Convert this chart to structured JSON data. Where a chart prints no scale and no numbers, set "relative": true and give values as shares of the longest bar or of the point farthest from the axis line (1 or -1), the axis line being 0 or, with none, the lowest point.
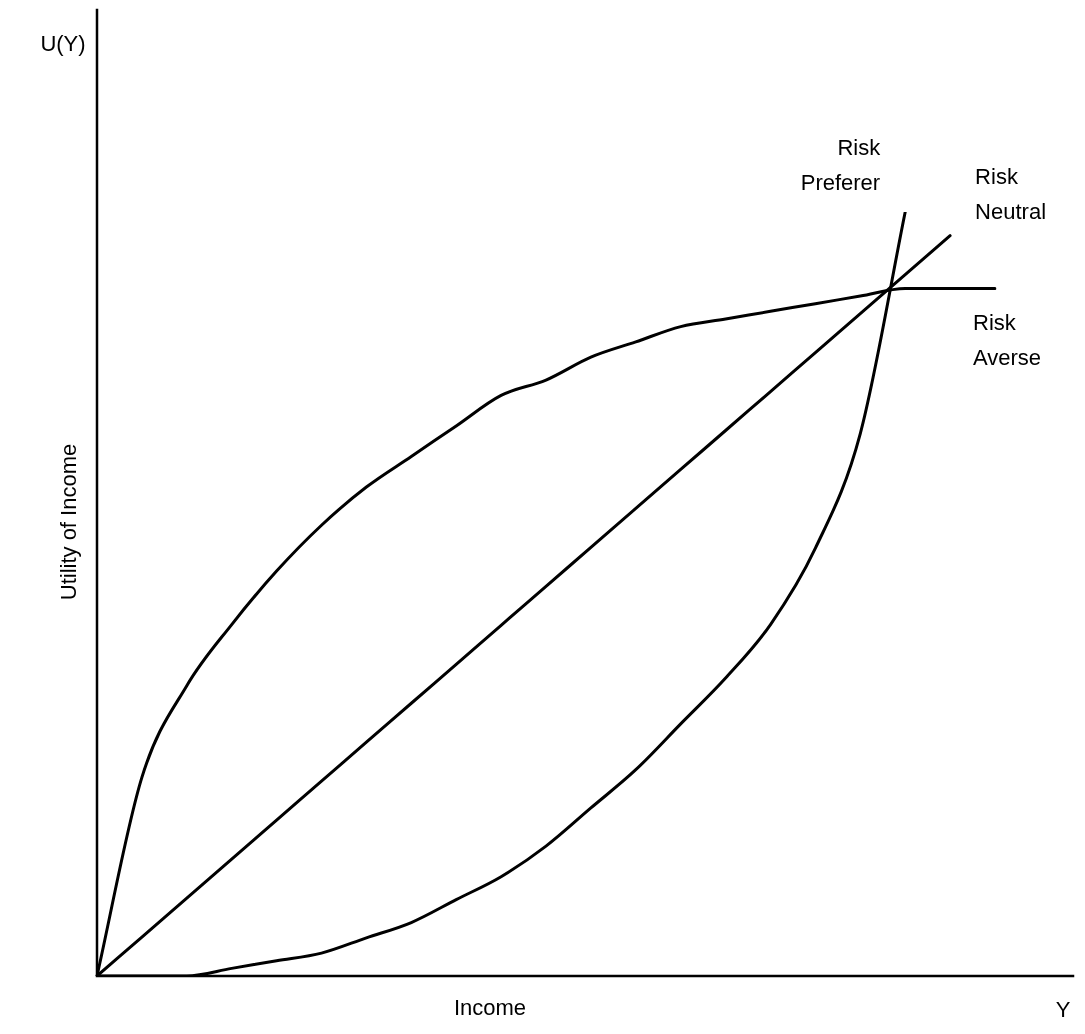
{
  "chart_data": {
    "type": "line",
    "relative": true,
    "xlabel": "Income",
    "ylabel": "Utility of Income",
    "annotations": [
      "U(Y)",
      "Y"
    ],
    "categories": [
      null,
      null,
      null,
      null,
      null,
      null,
      null,
      null,
      null,
      null,
      null,
      null,
      null,
      null,
      null,
      null,
      null,
      null,
      null,
      null,
      null
    ],
    "series": [
      {
        "name": "Risk Averse",
        "color": "#000000",
        "values": [
          0,
          0.26,
          0.38,
          0.46,
          0.53,
          0.59,
          0.64,
          0.68,
          0.72,
          0.76,
          0.78,
          0.81,
          0.83,
          0.85,
          0.86,
          0.87,
          0.88,
          0.89,
          0.9,
          0.9,
          0.9
        ]
      },
      {
        "name": "Risk Neutral",
        "color": "#000000",
        "values": [
          0,
          0.051,
          0.102,
          0.153,
          0.204,
          0.255,
          0.306,
          0.357,
          0.408,
          0.459,
          0.51,
          0.561,
          0.612,
          0.663,
          0.714,
          0.765,
          0.816,
          0.867,
          0.918,
          0.969,
          null
        ]
      },
      {
        "name": "Risk Preferer",
        "color": "#000000",
        "values": [
          0,
          0,
          0,
          0.01,
          0.02,
          0.03,
          0.05,
          0.07,
          0.1,
          0.13,
          0.17,
          0.22,
          0.27,
          0.33,
          0.39,
          0.46,
          0.56,
          0.71,
          1,
          null,
          null
        ]
      }
    ],
    "legend": false,
    "marker": "none",
    "line_style": "solid"
  }
}
